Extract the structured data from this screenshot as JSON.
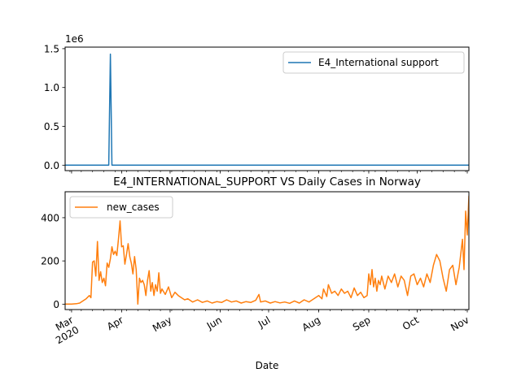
{
  "chart_data": [
    {
      "type": "line",
      "title": "",
      "xlabel": "",
      "ylabel": "",
      "y_offset_label": "1e6",
      "yticks": [
        0.0,
        0.5,
        1.0,
        1.5
      ],
      "ytick_labels": [
        "0.0",
        "0.5",
        "1.0",
        "1.5"
      ],
      "ylim": [
        -0.07,
        1.52
      ],
      "xlim": [
        "2020-02-26",
        "2020-11-02"
      ],
      "legend_position": "upper right",
      "grid": false,
      "series": [
        {
          "name": "E4_International support",
          "color": "#1f77b4",
          "points": [
            [
              "2020-02-26",
              0
            ],
            [
              "2020-03-24",
              0
            ],
            [
              "2020-03-25",
              1.43
            ],
            [
              "2020-03-26",
              0
            ],
            [
              "2020-11-02",
              0
            ]
          ]
        }
      ]
    },
    {
      "type": "line",
      "title": "E4_INTERNATIONAL_SUPPORT VS Daily Cases in Norway",
      "xlabel": "Date",
      "ylabel": "",
      "yticks": [
        0,
        200,
        400
      ],
      "ytick_labels": [
        "0",
        "200",
        "400"
      ],
      "ylim": [
        -25,
        520
      ],
      "xlim": [
        "2020-02-26",
        "2020-11-02"
      ],
      "xticks": [
        "2020-03-01",
        "2020-04-01",
        "2020-05-01",
        "2020-06-01",
        "2020-07-01",
        "2020-08-01",
        "2020-09-01",
        "2020-10-01",
        "2020-11-01"
      ],
      "xtick_labels": [
        "Mar\n2020",
        "Apr",
        "May",
        "Jun",
        "Jul",
        "Aug",
        "Sep",
        "Oct",
        "Nov"
      ],
      "legend_position": "upper left",
      "grid": false,
      "series": [
        {
          "name": "new_cases",
          "color": "#ff7f0e",
          "points": [
            [
              "2020-02-26",
              0
            ],
            [
              "2020-03-01",
              0
            ],
            [
              "2020-03-04",
              2
            ],
            [
              "2020-03-06",
              5
            ],
            [
              "2020-03-08",
              15
            ],
            [
              "2020-03-10",
              25
            ],
            [
              "2020-03-12",
              40
            ],
            [
              "2020-03-13",
              30
            ],
            [
              "2020-03-14",
              195
            ],
            [
              "2020-03-15",
              200
            ],
            [
              "2020-03-16",
              130
            ],
            [
              "2020-03-17",
              290
            ],
            [
              "2020-03-18",
              110
            ],
            [
              "2020-03-19",
              150
            ],
            [
              "2020-03-20",
              100
            ],
            [
              "2020-03-21",
              120
            ],
            [
              "2020-03-22",
              85
            ],
            [
              "2020-03-23",
              190
            ],
            [
              "2020-03-24",
              170
            ],
            [
              "2020-03-25",
              210
            ],
            [
              "2020-03-26",
              265
            ],
            [
              "2020-03-27",
              230
            ],
            [
              "2020-03-28",
              245
            ],
            [
              "2020-03-29",
              225
            ],
            [
              "2020-03-30",
              300
            ],
            [
              "2020-03-31",
              385
            ],
            [
              "2020-04-01",
              265
            ],
            [
              "2020-04-02",
              270
            ],
            [
              "2020-04-03",
              185
            ],
            [
              "2020-04-04",
              230
            ],
            [
              "2020-04-05",
              280
            ],
            [
              "2020-04-06",
              220
            ],
            [
              "2020-04-07",
              190
            ],
            [
              "2020-04-08",
              140
            ],
            [
              "2020-04-09",
              220
            ],
            [
              "2020-04-10",
              160
            ],
            [
              "2020-04-11",
              0
            ],
            [
              "2020-04-12",
              120
            ],
            [
              "2020-04-13",
              100
            ],
            [
              "2020-04-14",
              110
            ],
            [
              "2020-04-15",
              90
            ],
            [
              "2020-04-16",
              40
            ],
            [
              "2020-04-17",
              110
            ],
            [
              "2020-04-18",
              155
            ],
            [
              "2020-04-19",
              60
            ],
            [
              "2020-04-20",
              100
            ],
            [
              "2020-04-21",
              40
            ],
            [
              "2020-04-22",
              90
            ],
            [
              "2020-04-23",
              60
            ],
            [
              "2020-04-24",
              145
            ],
            [
              "2020-04-25",
              50
            ],
            [
              "2020-04-26",
              70
            ],
            [
              "2020-04-28",
              45
            ],
            [
              "2020-04-30",
              80
            ],
            [
              "2020-05-02",
              30
            ],
            [
              "2020-05-04",
              55
            ],
            [
              "2020-05-06",
              40
            ],
            [
              "2020-05-08",
              30
            ],
            [
              "2020-05-10",
              20
            ],
            [
              "2020-05-12",
              25
            ],
            [
              "2020-05-15",
              10
            ],
            [
              "2020-05-18",
              20
            ],
            [
              "2020-05-21",
              8
            ],
            [
              "2020-05-24",
              15
            ],
            [
              "2020-05-27",
              5
            ],
            [
              "2020-05-30",
              12
            ],
            [
              "2020-06-02",
              8
            ],
            [
              "2020-06-05",
              20
            ],
            [
              "2020-06-08",
              10
            ],
            [
              "2020-06-11",
              15
            ],
            [
              "2020-06-14",
              5
            ],
            [
              "2020-06-17",
              12
            ],
            [
              "2020-06-20",
              8
            ],
            [
              "2020-06-23",
              18
            ],
            [
              "2020-06-25",
              45
            ],
            [
              "2020-06-26",
              10
            ],
            [
              "2020-06-29",
              15
            ],
            [
              "2020-07-02",
              5
            ],
            [
              "2020-07-05",
              12
            ],
            [
              "2020-07-08",
              6
            ],
            [
              "2020-07-11",
              10
            ],
            [
              "2020-07-14",
              4
            ],
            [
              "2020-07-17",
              15
            ],
            [
              "2020-07-20",
              5
            ],
            [
              "2020-07-23",
              20
            ],
            [
              "2020-07-26",
              10
            ],
            [
              "2020-07-29",
              25
            ],
            [
              "2020-08-01",
              40
            ],
            [
              "2020-08-03",
              25
            ],
            [
              "2020-08-04",
              70
            ],
            [
              "2020-08-06",
              35
            ],
            [
              "2020-08-07",
              90
            ],
            [
              "2020-08-09",
              50
            ],
            [
              "2020-08-11",
              60
            ],
            [
              "2020-08-13",
              40
            ],
            [
              "2020-08-15",
              70
            ],
            [
              "2020-08-17",
              50
            ],
            [
              "2020-08-19",
              60
            ],
            [
              "2020-08-21",
              30
            ],
            [
              "2020-08-23",
              75
            ],
            [
              "2020-08-25",
              40
            ],
            [
              "2020-08-27",
              55
            ],
            [
              "2020-08-29",
              30
            ],
            [
              "2020-08-31",
              40
            ],
            [
              "2020-09-01",
              140
            ],
            [
              "2020-09-02",
              90
            ],
            [
              "2020-09-03",
              160
            ],
            [
              "2020-09-04",
              80
            ],
            [
              "2020-09-05",
              120
            ],
            [
              "2020-09-06",
              60
            ],
            [
              "2020-09-07",
              110
            ],
            [
              "2020-09-08",
              90
            ],
            [
              "2020-09-09",
              130
            ],
            [
              "2020-09-11",
              70
            ],
            [
              "2020-09-13",
              130
            ],
            [
              "2020-09-15",
              100
            ],
            [
              "2020-09-17",
              140
            ],
            [
              "2020-09-19",
              80
            ],
            [
              "2020-09-21",
              130
            ],
            [
              "2020-09-23",
              110
            ],
            [
              "2020-09-25",
              40
            ],
            [
              "2020-09-27",
              130
            ],
            [
              "2020-09-29",
              140
            ],
            [
              "2020-10-01",
              90
            ],
            [
              "2020-10-03",
              120
            ],
            [
              "2020-10-05",
              80
            ],
            [
              "2020-10-07",
              140
            ],
            [
              "2020-10-09",
              100
            ],
            [
              "2020-10-11",
              180
            ],
            [
              "2020-10-13",
              230
            ],
            [
              "2020-10-15",
              200
            ],
            [
              "2020-10-17",
              120
            ],
            [
              "2020-10-19",
              60
            ],
            [
              "2020-10-21",
              160
            ],
            [
              "2020-10-23",
              180
            ],
            [
              "2020-10-25",
              90
            ],
            [
              "2020-10-27",
              170
            ],
            [
              "2020-10-29",
              300
            ],
            [
              "2020-10-30",
              160
            ],
            [
              "2020-10-31",
              430
            ],
            [
              "2020-11-01",
              320
            ],
            [
              "2020-11-02",
              500
            ],
            [
              "2020-11-03",
              500
            ],
            [
              "2020-11-04",
              270
            ]
          ]
        }
      ]
    }
  ]
}
